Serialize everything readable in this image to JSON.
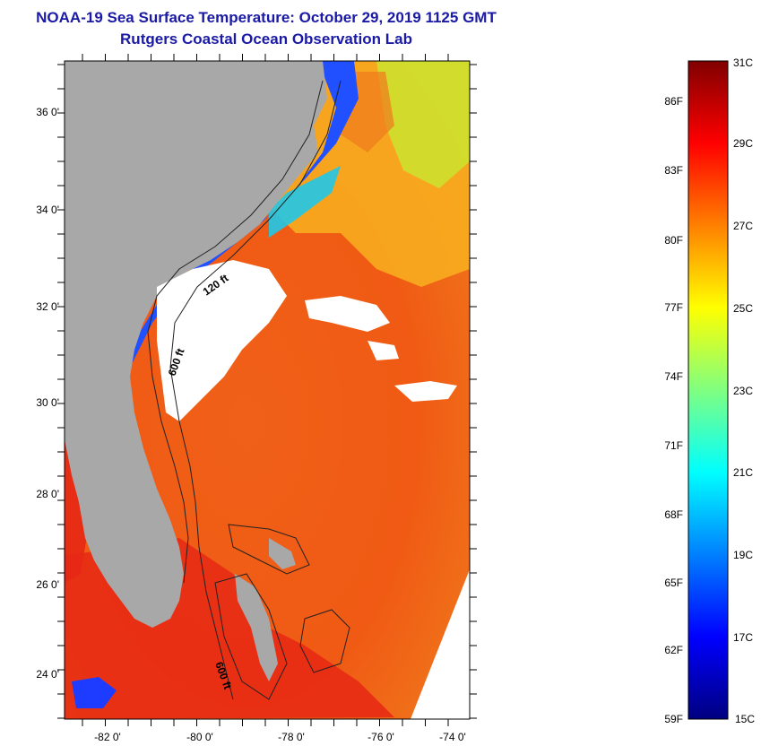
{
  "title": {
    "line1": "NOAA-19 Sea Surface Temperature:  October 29, 2019 1125 GMT",
    "line2": "Rutgers Coastal Ocean Observation Lab"
  },
  "map": {
    "lat_labels": [
      "36 0'",
      "34 0'",
      "32 0'",
      "30 0'",
      "28 0'",
      "26 0'",
      "24 0'"
    ],
    "lon_labels": [
      "-82 0'",
      "-80 0'",
      "-78 0'",
      "-76 0'",
      "-74 0'"
    ],
    "contour_labels": [
      "120 ft",
      "600 ft",
      "600 ft"
    ],
    "colors": {
      "land": "#a8a8a8",
      "cloud": "#ffffff",
      "warm": "#f05a14",
      "hot": "#e62814",
      "cool": "#ffd800",
      "cold": "#1e3cff"
    }
  },
  "colorbar": {
    "celsius_labels": [
      "31C",
      "29C",
      "27C",
      "25C",
      "23C",
      "21C",
      "19C",
      "17C",
      "15C"
    ],
    "fahrenheit_labels": [
      "86F",
      "83F",
      "80F",
      "77F",
      "74F",
      "71F",
      "68F",
      "65F",
      "62F",
      "59F"
    ],
    "colors": [
      "#000080",
      "#0000ff",
      "#0080ff",
      "#00ffff",
      "#80ff80",
      "#ffff00",
      "#ff8000",
      "#ff0000",
      "#800000"
    ]
  }
}
